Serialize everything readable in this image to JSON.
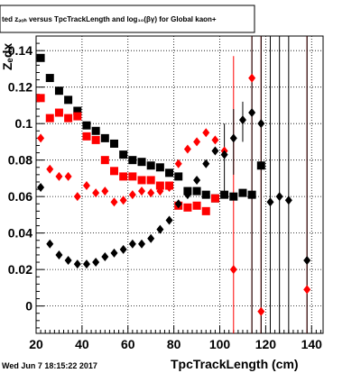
{
  "title": "ted  zₔₒₕ versus TpcTrackLength and log₁₀(βγ) for Global kaon+",
  "ylabel": "Zₑdx",
  "xlabel": "TpcTrackLength (cm)",
  "timestamp": "Wed Jun  7 18:15:22 2017",
  "colors": {
    "black": "#000000",
    "red": "#ff0000"
  },
  "chart_data": {
    "type": "scatter",
    "xlim": [
      20,
      145
    ],
    "ylim": [
      -0.015,
      0.148
    ],
    "grid": true,
    "x_ticks": [
      20,
      40,
      60,
      80,
      100,
      120,
      140
    ],
    "y_ticks": [
      0,
      0.02,
      0.04,
      0.06,
      0.08,
      0.1,
      0.12,
      0.14
    ],
    "x_tick_labels": [
      "20",
      "40",
      "60",
      "80",
      "100",
      "120",
      "140"
    ],
    "y_tick_labels": [
      "0",
      "0.02",
      "0.04",
      "0.06",
      "0.08",
      "0.1",
      "0.12",
      "0.14"
    ],
    "series": [
      {
        "color": "#000000",
        "marker": "square",
        "points": [
          [
            22,
            0.136
          ],
          [
            26,
            0.125
          ],
          [
            30,
            0.118
          ],
          [
            34,
            0.113
          ],
          [
            38,
            0.107
          ],
          [
            42,
            0.099
          ],
          [
            46,
            0.096
          ],
          [
            50,
            0.092
          ],
          [
            54,
            0.089
          ],
          [
            58,
            0.083
          ],
          [
            62,
            0.08
          ],
          [
            66,
            0.079
          ],
          [
            70,
            0.077
          ],
          [
            74,
            0.076
          ],
          [
            78,
            0.073
          ],
          [
            82,
            0.071
          ],
          [
            86,
            0.063
          ],
          [
            90,
            0.063
          ],
          [
            94,
            0.061
          ],
          [
            98,
            0.059
          ],
          [
            102,
            0.061
          ],
          [
            106,
            0.06
          ],
          [
            110,
            0.062
          ],
          [
            114,
            0.061
          ],
          [
            118,
            0.077
          ]
        ]
      },
      {
        "color": "#ff0000",
        "marker": "square",
        "points": [
          [
            22,
            0.114
          ],
          [
            26,
            0.103
          ],
          [
            30,
            0.106
          ],
          [
            34,
            0.103
          ],
          [
            38,
            0.104
          ],
          [
            42,
            0.093
          ],
          [
            46,
            0.091
          ],
          [
            50,
            0.08
          ],
          [
            54,
            0.074
          ],
          [
            58,
            0.071
          ],
          [
            62,
            0.071
          ],
          [
            66,
            0.069
          ],
          [
            70,
            0.069
          ],
          [
            74,
            0.066
          ],
          [
            78,
            0.066
          ],
          [
            82,
            0.055
          ],
          [
            86,
            0.054
          ],
          [
            90,
            0.055
          ],
          [
            94,
            0.052
          ],
          [
            98,
            0.059
          ]
        ]
      },
      {
        "color": "#ff0000",
        "marker": "diamond",
        "points": [
          [
            22,
            0.092
          ],
          [
            26,
            0.075
          ],
          [
            30,
            0.071
          ],
          [
            34,
            0.071
          ],
          [
            38,
            0.06
          ],
          [
            42,
            0.066
          ],
          [
            46,
            0.062
          ],
          [
            50,
            0.063
          ],
          [
            54,
            0.057
          ],
          [
            58,
            0.058
          ],
          [
            62,
            0.061
          ],
          [
            66,
            0.063
          ],
          [
            70,
            0.062
          ],
          [
            74,
            0.063
          ],
          [
            78,
            0.065
          ],
          [
            82,
            0.078
          ],
          [
            86,
            0.086
          ],
          [
            90,
            0.09
          ],
          [
            94,
            0.095
          ],
          [
            98,
            0.091
          ],
          [
            102,
            0.085
          ],
          [
            106,
            0.02
          ],
          [
            114,
            0.125
          ],
          [
            118,
            -0.003
          ],
          [
            138,
            0.009
          ]
        ],
        "error_bars": [
          {
            "x": 106,
            "low": -0.015,
            "high": 0.137
          },
          {
            "x": 114,
            "low": -0.015,
            "high": 0.148
          },
          {
            "x": 118,
            "low": -0.015,
            "high": 0.148
          },
          {
            "x": 138,
            "low": -0.015,
            "high": 0.148
          }
        ]
      },
      {
        "color": "#000000",
        "marker": "diamond",
        "points": [
          [
            22,
            0.065
          ],
          [
            26,
            0.034
          ],
          [
            30,
            0.028
          ],
          [
            34,
            0.025
          ],
          [
            38,
            0.023
          ],
          [
            42,
            0.023
          ],
          [
            46,
            0.024
          ],
          [
            50,
            0.027
          ],
          [
            54,
            0.029
          ],
          [
            58,
            0.031
          ],
          [
            62,
            0.034
          ],
          [
            66,
            0.034
          ],
          [
            70,
            0.037
          ],
          [
            74,
            0.042
          ],
          [
            78,
            0.047
          ],
          [
            82,
            0.056
          ],
          [
            86,
            0.061
          ],
          [
            90,
            0.069
          ],
          [
            94,
            0.078
          ],
          [
            98,
            0.085
          ],
          [
            102,
            0.083
          ],
          [
            106,
            0.092
          ],
          [
            110,
            0.102
          ],
          [
            114,
            0.106
          ],
          [
            118,
            0.1
          ],
          [
            122,
            0.057
          ],
          [
            126,
            0.06
          ],
          [
            130,
            0.058
          ],
          [
            138,
            0.025
          ]
        ],
        "error_bars": [
          {
            "x": 102,
            "low": 0.063,
            "high": 0.1
          },
          {
            "x": 106,
            "low": 0.072,
            "high": 0.108
          },
          {
            "x": 110,
            "low": 0.09,
            "high": 0.112
          },
          {
            "x": 114,
            "low": -0.015,
            "high": 0.148
          },
          {
            "x": 118,
            "low": -0.015,
            "high": 0.148
          },
          {
            "x": 122,
            "low": -0.015,
            "high": 0.148
          },
          {
            "x": 126,
            "low": -0.015,
            "high": 0.148
          },
          {
            "x": 130,
            "low": -0.015,
            "high": 0.148
          },
          {
            "x": 138,
            "low": -0.015,
            "high": 0.148
          }
        ]
      }
    ]
  }
}
